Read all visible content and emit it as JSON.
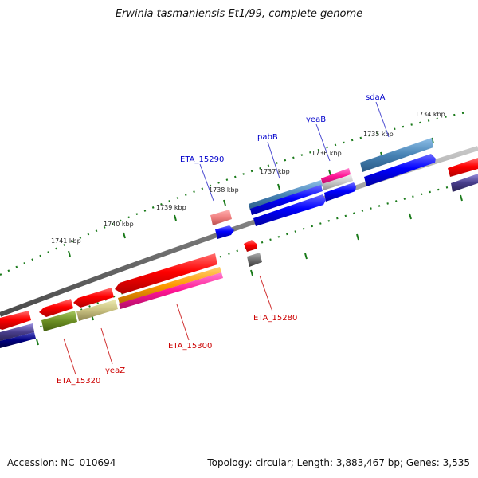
{
  "header": {
    "title": "Erwinia tasmaniensis Et1/99, complete genome"
  },
  "footer": {
    "accession": "Accession: NC_010694",
    "topology": "Topology: circular; Length: 3,883,467 bp; Genes: 3,535"
  },
  "ruler": {
    "ticks": [
      {
        "label": "1734 kbp"
      },
      {
        "label": "1735 kbp"
      },
      {
        "label": "1736 kbp"
      },
      {
        "label": "1737 kbp"
      },
      {
        "label": "1738 kbp"
      },
      {
        "label": "1739 kbp"
      },
      {
        "label": "1740 kbp"
      },
      {
        "label": "1741 kbp"
      }
    ]
  },
  "gene_labels": {
    "sdaA": "sdaA",
    "yeaB": "yeaB",
    "pabB": "pabB",
    "eta15290": "ETA_15290",
    "eta15280": "ETA_15280",
    "eta15300": "ETA_15300",
    "yeaZ": "yeaZ",
    "eta15320": "ETA_15320"
  },
  "colors": {
    "forward_label": "#0000cc",
    "reverse_label": "#cc0000",
    "tick": "#1a7a1a",
    "backbone": "#888888"
  }
}
